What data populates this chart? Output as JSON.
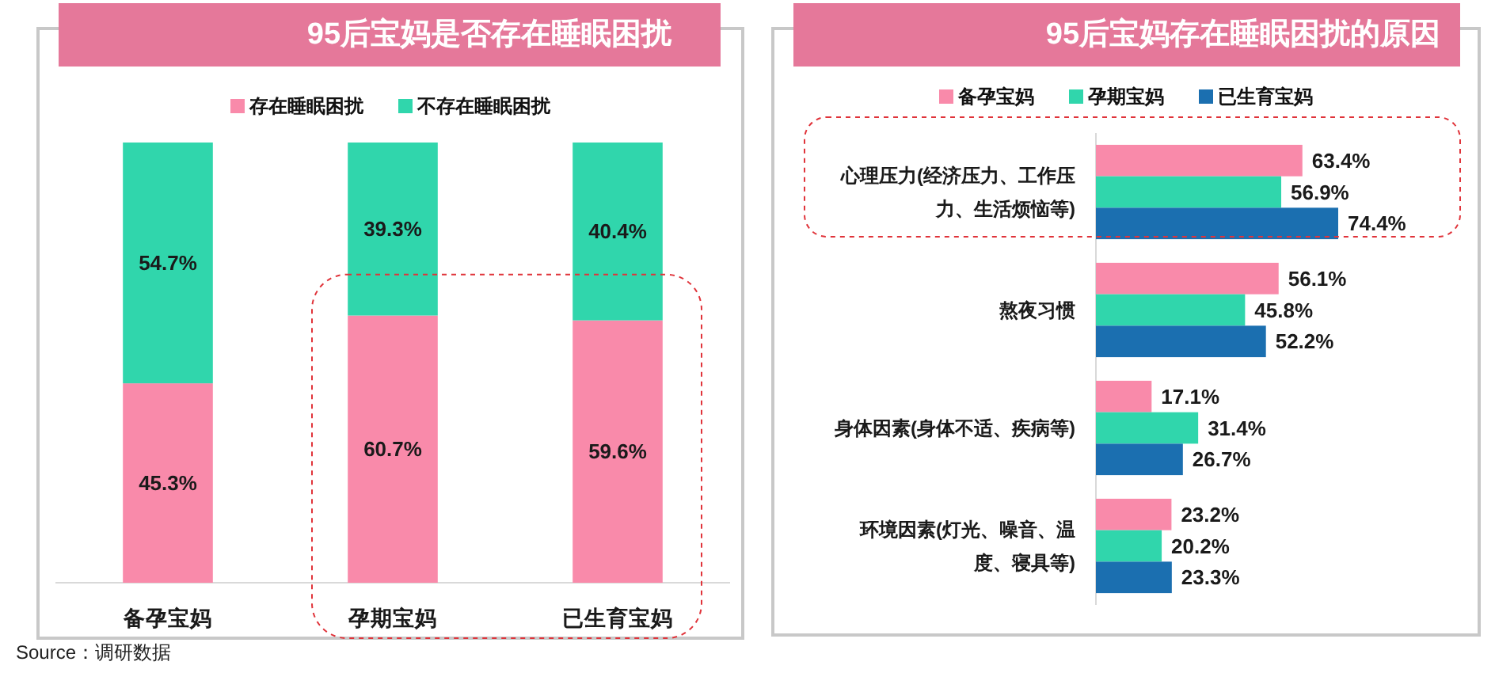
{
  "chart_data": [
    {
      "type": "bar",
      "stacked": true,
      "title": "95后宝妈是否存在睡眠困扰",
      "categories": [
        "备孕宝妈",
        "孕期宝妈",
        "已生育宝妈"
      ],
      "series": [
        {
          "name": "存在睡眠困扰",
          "color": "#f98aaa",
          "values": [
            45.3,
            60.7,
            59.6
          ],
          "value_labels": [
            "45.3%",
            "60.7%",
            "59.6%"
          ]
        },
        {
          "name": "不存在睡眠困扰",
          "color": "#30d6ac",
          "values": [
            54.7,
            39.3,
            40.4
          ],
          "value_labels": [
            "54.7%",
            "39.3%",
            "40.4%"
          ]
        }
      ],
      "ylim": [
        0,
        100
      ],
      "tick_labels": "x",
      "legend": "top",
      "annotations": [
        "Source：调研数据"
      ]
    },
    {
      "type": "bar",
      "orientation": "horizontal",
      "title": "95后宝妈存在睡眠困扰的原因",
      "categories": [
        "心理压力(经济压力、工作压力、生活烦恼等)",
        "熬夜习惯",
        "身体因素(身体不适、疾病等)",
        "环境因素(灯光、噪音、温度、寝具等)"
      ],
      "series": [
        {
          "name": "备孕宝妈",
          "color": "#f98aaa",
          "values": [
            63.4,
            56.1,
            17.1,
            23.2
          ],
          "value_labels": [
            "63.4%",
            "56.1%",
            "17.1%",
            "23.2%"
          ]
        },
        {
          "name": "孕期宝妈",
          "color": "#30d6ac",
          "values": [
            56.9,
            45.8,
            31.4,
            20.2
          ],
          "value_labels": [
            "56.9%",
            "45.8%",
            "31.4%",
            "20.2%"
          ]
        },
        {
          "name": "已生育宝妈",
          "color": "#1b6fb0",
          "values": [
            74.4,
            52.2,
            26.7,
            23.3
          ],
          "value_labels": [
            "74.4%",
            "52.2%",
            "26.7%",
            "23.3%"
          ]
        }
      ],
      "tick_labels": "y",
      "legend": "top"
    }
  ]
}
